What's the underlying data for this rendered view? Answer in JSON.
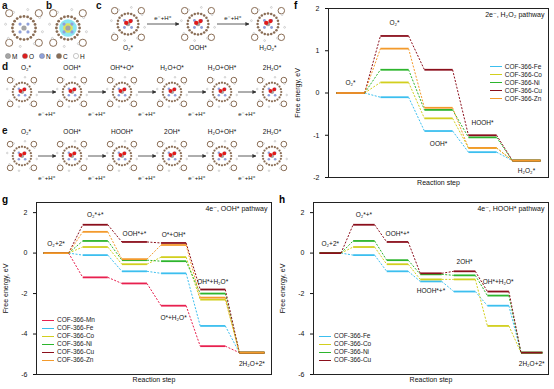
{
  "panel_labels": [
    "a",
    "b",
    "c",
    "d",
    "e",
    "f",
    "g",
    "h"
  ],
  "schemes": {
    "atom_legend": [
      "M",
      "O",
      "N",
      "C",
      "H"
    ],
    "c": {
      "states": [
        "O₂*",
        "OOH*",
        "H₂O₂*"
      ],
      "steps": [
        "e⁻+H⁺",
        "e⁻+H⁺"
      ]
    },
    "d": {
      "states": [
        "O₂*",
        "OOH*",
        "OH*+O*",
        "H₂O+O*",
        "H₂O+OH*",
        "2H₂O*"
      ],
      "steps": [
        "e⁻+H⁺",
        "e⁻+H⁺",
        "e⁻+H⁺",
        "e⁻+H⁺",
        "e⁻+H⁺"
      ]
    },
    "e": {
      "states": [
        "O₂*",
        "OOH*",
        "HOOH*",
        "2OH*",
        "H₂O+OH*",
        "2H₂O*"
      ],
      "steps": [
        "e⁻+H⁺",
        "e⁻+H⁺",
        "e⁻+H⁺",
        "e⁻+H⁺",
        "e⁻+H⁺"
      ]
    }
  },
  "chart_data": [
    {
      "type": "step",
      "title": "2e⁻, H₂O₂ pathway",
      "x_label": "Reaction step",
      "y_label": "Free energy, eV",
      "x": [
        1,
        2,
        3,
        4,
        5
      ],
      "xlim": [
        0.5,
        5.5
      ],
      "ylim": [
        -2,
        2
      ],
      "yticks": [
        -2,
        -1,
        0,
        1,
        2
      ],
      "tick_labels": "y",
      "legend": "right",
      "series": [
        {
          "name": "COF-366-Fe",
          "color": "#3cbfef",
          "values": [
            0,
            -0.1,
            -0.9,
            -1.4,
            -1.6
          ]
        },
        {
          "name": "COF-366-Co",
          "color": "#d2cf1e",
          "values": [
            0,
            0.25,
            -0.6,
            -1.3,
            -1.6
          ]
        },
        {
          "name": "COF-366-Ni",
          "color": "#2db52d",
          "values": [
            0,
            0.55,
            -0.4,
            -1.05,
            -1.6
          ]
        },
        {
          "name": "COF-366-Cu",
          "color": "#8b0f1c",
          "values": [
            0,
            1.35,
            0.55,
            -1.0,
            -1.6
          ]
        },
        {
          "name": "COF-366-Zn",
          "color": "#f39a2c",
          "values": [
            0,
            1.05,
            -0.35,
            -1.3,
            -1.6
          ]
        }
      ],
      "annotations": [
        {
          "text": "O₂*",
          "x": 1,
          "y": 0.25
        },
        {
          "text": "O₂*",
          "x": 2,
          "y": 1.65
        },
        {
          "text": "OOH*",
          "x": 3,
          "y": -1.2
        },
        {
          "text": "HOOH*",
          "x": 4,
          "y": -0.7
        },
        {
          "text": "H₂O₂*",
          "x": 5,
          "y": -1.85
        }
      ]
    },
    {
      "type": "step",
      "title": "4e⁻, OOH* pathway",
      "x_label": "Reaction step",
      "y_label": "Free energy, eV",
      "x": [
        1,
        2,
        3,
        4,
        5,
        6
      ],
      "xlim": [
        0.5,
        6.5
      ],
      "ylim": [
        -6,
        2.5
      ],
      "yticks": [
        -6,
        -4,
        -2,
        0,
        2
      ],
      "tick_labels": "y",
      "legend": "lower left",
      "series": [
        {
          "name": "COF-366-Mn",
          "color": "#e8204f",
          "values": [
            0,
            -1.2,
            -1.5,
            -2.6,
            -4.6,
            -4.92
          ]
        },
        {
          "name": "COF-366-Fe",
          "color": "#3cbfef",
          "values": [
            0,
            -0.1,
            -0.9,
            -1.0,
            -3.6,
            -4.92
          ]
        },
        {
          "name": "COF-366-Co",
          "color": "#d2cf1e",
          "values": [
            0,
            0.3,
            -0.55,
            -0.2,
            -2.3,
            -4.92
          ]
        },
        {
          "name": "COF-366-Ni",
          "color": "#2db52d",
          "values": [
            0,
            0.6,
            -0.35,
            -0.4,
            -2.0,
            -4.92
          ]
        },
        {
          "name": "COF-366-Cu",
          "color": "#8b0f1c",
          "values": [
            0,
            1.4,
            0.55,
            0.5,
            -1.8,
            -4.92
          ]
        },
        {
          "name": "COF-366-Zn",
          "color": "#f39a2c",
          "values": [
            0,
            1.05,
            -0.3,
            0.4,
            -2.2,
            -4.92
          ]
        }
      ],
      "annotations": [
        {
          "text": "O₂+2*",
          "x": 1,
          "y": 0.45
        },
        {
          "text": "O₂*+*",
          "x": 2,
          "y": 1.9
        },
        {
          "text": "OOH*+*",
          "x": 3,
          "y": 0.95
        },
        {
          "text": "O*+OH*",
          "x": 4,
          "y": 0.9
        },
        {
          "text": "O*+H₂O*",
          "x": 4,
          "y": -3.2
        },
        {
          "text": "OH*+H₂O*",
          "x": 5,
          "y": -1.4
        },
        {
          "text": "2H₂O+2*",
          "x": 6,
          "y": -5.5
        }
      ]
    },
    {
      "type": "step",
      "title": "4e⁻, HOOH* pathway",
      "x_label": "Reaction step",
      "y_label": "Free energy, eV",
      "x": [
        1,
        2,
        3,
        4,
        5,
        6,
        7
      ],
      "xlim": [
        0.5,
        7.5
      ],
      "ylim": [
        -6,
        2.5
      ],
      "yticks": [
        -6,
        -4,
        -2,
        0,
        2
      ],
      "tick_labels": "y",
      "legend": "lower left",
      "series": [
        {
          "name": "COF-366-Fe",
          "color": "#3cbfef",
          "values": [
            0,
            -0.1,
            -0.9,
            -1.4,
            -1.9,
            -2.6,
            -4.92
          ]
        },
        {
          "name": "COF-366-Co",
          "color": "#d2cf1e",
          "values": [
            0,
            0.3,
            -0.55,
            -1.3,
            -1.3,
            -3.6,
            -4.92
          ]
        },
        {
          "name": "COF-366-Ni",
          "color": "#2db52d",
          "values": [
            0,
            0.6,
            -0.35,
            -1.05,
            -1.1,
            -2.1,
            -4.92
          ]
        },
        {
          "name": "COF-366-Cu",
          "color": "#8b0f1c",
          "values": [
            0,
            1.4,
            0.55,
            -1.0,
            -0.9,
            -1.9,
            -4.92
          ]
        }
      ],
      "annotations": [
        {
          "text": "O₂+2*",
          "x": 1,
          "y": 0.45
        },
        {
          "text": "O₂*+*",
          "x": 2,
          "y": 1.9
        },
        {
          "text": "OOH*+*",
          "x": 3,
          "y": 0.95
        },
        {
          "text": "HOOH*+*",
          "x": 4,
          "y": -1.85
        },
        {
          "text": "2OH*",
          "x": 5,
          "y": -0.45
        },
        {
          "text": "OH*+H₂O*",
          "x": 6,
          "y": -1.4
        },
        {
          "text": "2H₂O+2*",
          "x": 7,
          "y": -5.5
        }
      ]
    }
  ]
}
